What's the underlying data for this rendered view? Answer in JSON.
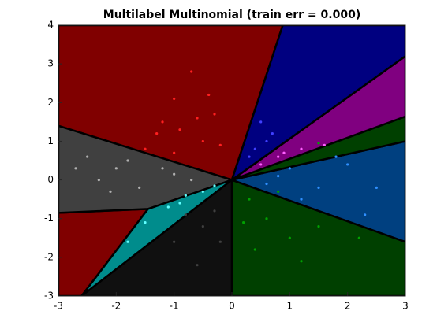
{
  "chart_data": {
    "type": "scatter",
    "title": "Multilabel Multinomial (train err = 0.000)",
    "xlim": [
      -3,
      3
    ],
    "ylim": [
      -3,
      4
    ],
    "xticks": [
      -3,
      -2,
      -1,
      0,
      1,
      2,
      3
    ],
    "yticks": [
      -3,
      -2,
      -1,
      0,
      1,
      2,
      3,
      4
    ],
    "series": [
      {
        "color": "#800000",
        "point_color": "#ff2020",
        "region": [
          [
            -3,
            4
          ],
          [
            0.88,
            4
          ],
          [
            0,
            0
          ],
          [
            -3,
            1.4
          ]
        ],
        "x": [
          -1.2,
          -0.9,
          -0.5,
          -1.0,
          -0.7,
          -0.3,
          -1.5,
          -0.2,
          -1.3,
          -0.6,
          -1.0,
          -0.4
        ],
        "y": [
          1.5,
          1.3,
          1.0,
          2.1,
          2.8,
          1.7,
          0.8,
          0.9,
          1.2,
          1.6,
          0.7,
          2.2
        ]
      },
      {
        "color": "#800000",
        "point_color": "#ff2020",
        "region": [
          [
            -3,
            -0.85
          ],
          [
            -1.45,
            -0.75
          ],
          [
            -2.6,
            -3
          ],
          [
            -3,
            -3
          ]
        ],
        "x": [],
        "y": []
      },
      {
        "color": "#404040",
        "point_color": "#b0b0b0",
        "region": [
          [
            -3,
            1.4
          ],
          [
            0,
            0
          ],
          [
            -1.45,
            -0.75
          ],
          [
            -3,
            -0.85
          ]
        ],
        "x": [
          -2.5,
          -2.0,
          -1.8,
          -1.2,
          -2.3,
          -1.6,
          -0.7,
          -2.7,
          -1.0,
          -2.1
        ],
        "y": [
          0.6,
          0.3,
          0.5,
          0.3,
          0.0,
          -0.2,
          0.0,
          0.3,
          0.15,
          -0.3
        ]
      },
      {
        "color": "#008c8c",
        "point_color": "#60ffff",
        "region": [
          [
            0,
            0
          ],
          [
            -1.45,
            -0.75
          ],
          [
            -2.6,
            -3
          ]
        ],
        "x": [
          -0.8,
          -1.1,
          -0.5,
          -1.5,
          -0.9,
          -1.8,
          -0.3
        ],
        "y": [
          -0.4,
          -0.7,
          -0.3,
          -1.1,
          -0.6,
          -1.6,
          -0.15
        ]
      },
      {
        "color": "#101010",
        "point_color": "#404040",
        "region": [
          [
            0,
            0
          ],
          [
            0,
            -3
          ],
          [
            -2.6,
            -3
          ]
        ],
        "x": [
          -0.5,
          -0.3,
          -1.0,
          -0.2,
          -0.6,
          -0.8
        ],
        "y": [
          -1.2,
          -0.8,
          -1.6,
          -1.6,
          -2.2,
          -0.9
        ]
      },
      {
        "color": "#004000",
        "point_color": "#00a000",
        "region": [
          [
            0,
            0
          ],
          [
            3,
            -1.6
          ],
          [
            3,
            -3
          ],
          [
            0,
            -3
          ]
        ],
        "x": [
          0.3,
          0.6,
          1.0,
          0.4,
          1.5,
          0.8,
          0.2,
          1.2,
          2.2
        ],
        "y": [
          -0.5,
          -1.0,
          -1.5,
          -1.8,
          -1.2,
          -0.3,
          -1.1,
          -2.1,
          -1.5
        ]
      },
      {
        "color": "#004080",
        "point_color": "#3090ff",
        "region": [
          [
            0,
            0
          ],
          [
            3,
            1.0
          ],
          [
            3,
            -1.6
          ]
        ],
        "x": [
          0.8,
          1.5,
          2.0,
          1.2,
          2.5,
          0.6,
          1.8,
          2.3,
          1.0
        ],
        "y": [
          0.1,
          -0.2,
          0.4,
          -0.5,
          -0.2,
          -0.1,
          0.6,
          -0.9,
          0.3
        ]
      },
      {
        "color": "#004000",
        "point_color": "#00a000",
        "region": [
          [
            0,
            0
          ],
          [
            3,
            1.64
          ],
          [
            3,
            1.0
          ]
        ],
        "x": [
          1.5
        ],
        "y": [
          0.95
        ]
      },
      {
        "color": "#800080",
        "point_color": "#ff60ff",
        "region": [
          [
            0,
            0
          ],
          [
            3,
            3.2
          ],
          [
            3,
            1.64
          ]
        ],
        "x": [
          0.8,
          1.2,
          0.5,
          1.6,
          0.9
        ],
        "y": [
          0.6,
          0.8,
          0.4,
          0.9,
          0.7
        ]
      },
      {
        "color": "#000080",
        "point_color": "#4040ff",
        "region": [
          [
            0,
            0
          ],
          [
            0.88,
            4
          ],
          [
            3,
            4
          ],
          [
            3,
            3.2
          ]
        ],
        "x": [
          0.6,
          0.5,
          0.7,
          0.4,
          0.3
        ],
        "y": [
          1.0,
          1.5,
          1.2,
          0.8,
          0.6
        ]
      }
    ]
  }
}
